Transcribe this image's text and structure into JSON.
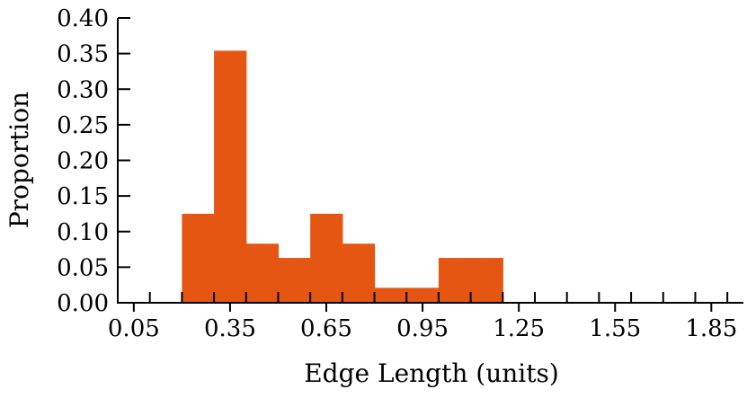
{
  "chart_data": {
    "type": "bar",
    "histogram": true,
    "xlabel": "Edge Length (units)",
    "ylabel": "Proportion",
    "xlim": [
      0.0,
      1.95
    ],
    "ylim": [
      0.0,
      0.4
    ],
    "x_tick_labels": [
      "0.05",
      "0.35",
      "0.65",
      "0.95",
      "1.25",
      "1.55",
      "1.85"
    ],
    "x_tick_values": [
      0.05,
      0.35,
      0.65,
      0.95,
      1.25,
      1.55,
      1.85
    ],
    "y_tick_labels": [
      "0.00",
      "0.05",
      "0.10",
      "0.15",
      "0.20",
      "0.25",
      "0.30",
      "0.35",
      "0.40"
    ],
    "y_tick_values": [
      0.0,
      0.05,
      0.1,
      0.15,
      0.2,
      0.25,
      0.3,
      0.35,
      0.4
    ],
    "minor_x_tick_step": 0.1,
    "bins": [
      {
        "x0": 0.2,
        "x1": 0.3,
        "value": 0.125
      },
      {
        "x0": 0.3,
        "x1": 0.4,
        "value": 0.354
      },
      {
        "x0": 0.4,
        "x1": 0.5,
        "value": 0.083
      },
      {
        "x0": 0.5,
        "x1": 0.6,
        "value": 0.063
      },
      {
        "x0": 0.6,
        "x1": 0.7,
        "value": 0.125
      },
      {
        "x0": 0.7,
        "x1": 0.8,
        "value": 0.083
      },
      {
        "x0": 0.8,
        "x1": 0.9,
        "value": 0.021
      },
      {
        "x0": 0.9,
        "x1": 1.0,
        "value": 0.021
      },
      {
        "x0": 1.0,
        "x1": 1.1,
        "value": 0.063
      },
      {
        "x0": 1.1,
        "x1": 1.2,
        "value": 0.063
      }
    ],
    "bar_color": "#e55613",
    "grid": false,
    "legend": "none"
  }
}
